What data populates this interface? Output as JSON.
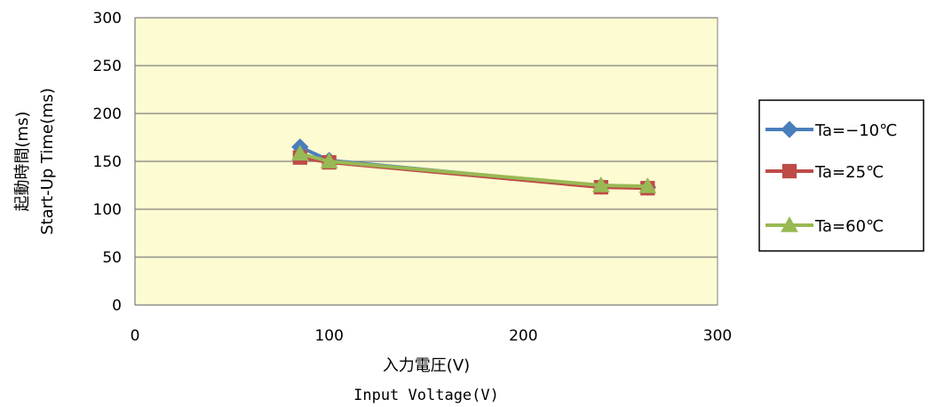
{
  "chart_data": {
    "type": "line",
    "title": "",
    "xlabel": "入力電圧(V)",
    "xlabel_en": "Input  Voltage(V)",
    "ylabel": "起動時間(ms)",
    "ylabel_en": "Start-Up Time(ms)",
    "xlim": [
      0,
      300
    ],
    "ylim": [
      0,
      300
    ],
    "x_ticks": [
      0,
      100,
      200,
      300
    ],
    "y_ticks": [
      0,
      50,
      100,
      150,
      200,
      250,
      300
    ],
    "x_tick_labels": [
      "0",
      "100",
      "200",
      "300"
    ],
    "y_tick_labels": [
      "0",
      "50",
      "100",
      "150",
      "200",
      "250",
      "300"
    ],
    "grid": "horizontal",
    "plot_background": "#fdfbd2",
    "legend_position": "right",
    "series": [
      {
        "name": "Ta=−10℃",
        "color": "#4a7ebb",
        "marker": "diamond",
        "points": [
          [
            85,
            165
          ],
          [
            100,
            151
          ],
          [
            240,
            124
          ],
          [
            264,
            123
          ]
        ]
      },
      {
        "name": "Ta=25℃",
        "color": "#be4b48",
        "marker": "square",
        "points": [
          [
            85,
            154
          ],
          [
            100,
            149
          ],
          [
            240,
            123
          ],
          [
            264,
            122
          ]
        ]
      },
      {
        "name": "Ta=60℃",
        "color": "#98b954",
        "marker": "triangle",
        "points": [
          [
            85,
            158
          ],
          [
            100,
            150
          ],
          [
            240,
            125
          ],
          [
            264,
            124
          ]
        ]
      }
    ]
  }
}
